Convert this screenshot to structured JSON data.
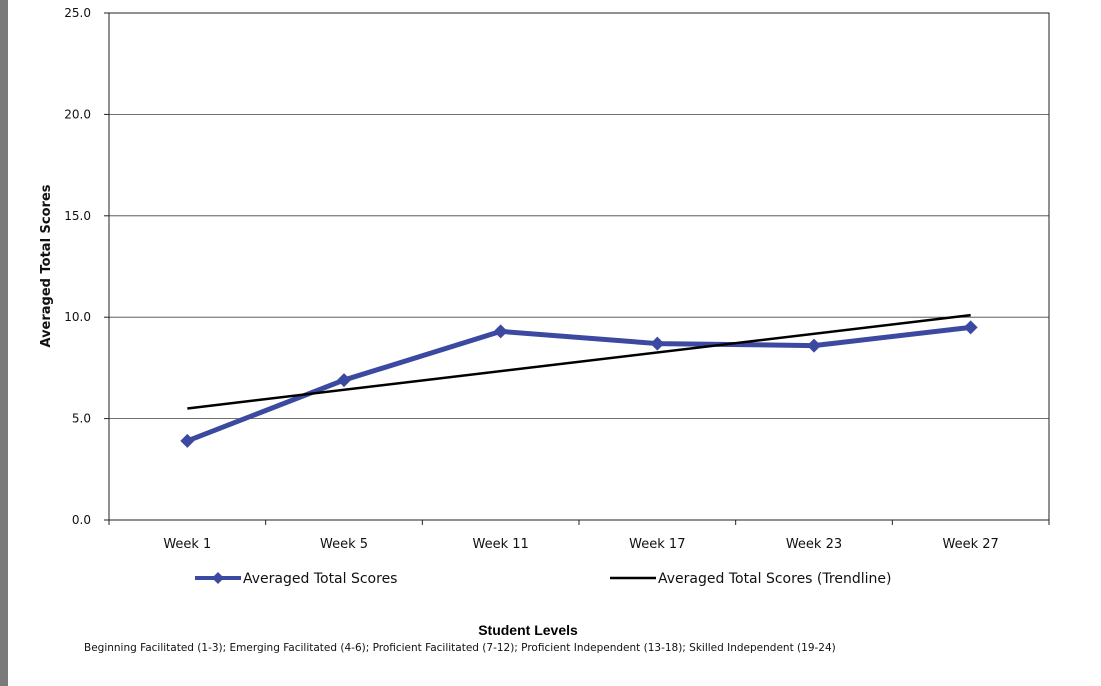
{
  "chart_data": {
    "type": "line",
    "categories": [
      "Week 1",
      "Week 5",
      "Week 11",
      "Week 17",
      "Week 23",
      "Week 27"
    ],
    "series": [
      {
        "name": "Averaged Total Scores",
        "values": [
          3.9,
          6.9,
          9.3,
          8.7,
          8.6,
          9.5
        ],
        "color": "#3b4aa0",
        "marker": "diamond"
      },
      {
        "name": "Averaged Total Scores (Trendline)",
        "values": [
          5.5,
          6.42,
          7.34,
          8.26,
          9.18,
          10.1
        ],
        "color": "#000000",
        "marker": "none"
      }
    ],
    "ylabel": "Averaged Total Scores",
    "xlabel": "Student Levels",
    "ylim": [
      0,
      25
    ],
    "yticks": [
      "0.0",
      "5.0",
      "10.0",
      "15.0",
      "20.0",
      "25.0"
    ],
    "grid": true,
    "legend_position": "bottom"
  },
  "footnote": "Beginning Facilitated (1-3); Emerging Facilitated (4-6); Proficient Facilitated (7-12); Proficient Independent (13-18); Skilled Independent (19-24)"
}
